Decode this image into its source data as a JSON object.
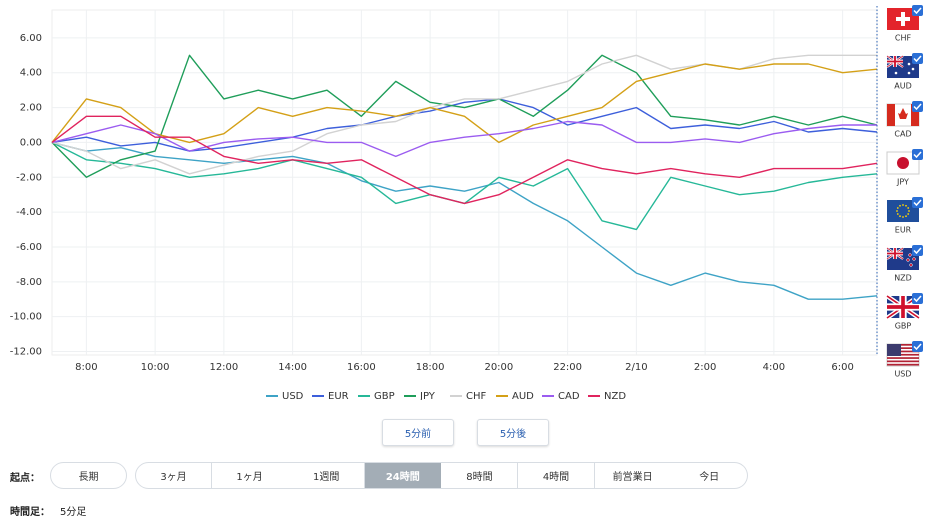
{
  "chart_data": {
    "type": "line",
    "x": [
      7,
      8,
      9,
      10,
      11,
      12,
      13,
      14,
      15,
      16,
      17,
      18,
      19,
      20,
      21,
      22,
      23,
      24,
      25,
      26,
      27,
      28,
      29,
      30,
      31
    ],
    "xlim": [
      7,
      31
    ],
    "xticks": [
      {
        "value": 8,
        "label": "8:00"
      },
      {
        "value": 10,
        "label": "10:00"
      },
      {
        "value": 12,
        "label": "12:00"
      },
      {
        "value": 14,
        "label": "14:00"
      },
      {
        "value": 16,
        "label": "16:00"
      },
      {
        "value": 18,
        "label": "18:00"
      },
      {
        "value": 20,
        "label": "20:00"
      },
      {
        "value": 22,
        "label": "22:00"
      },
      {
        "value": 24,
        "label": "2/10"
      },
      {
        "value": 26,
        "label": "2:00"
      },
      {
        "value": 28,
        "label": "4:00"
      },
      {
        "value": 30,
        "label": "6:00"
      }
    ],
    "ylim": [
      -12.2,
      7.6
    ],
    "yticks": [
      {
        "value": 6,
        "label": "6.00"
      },
      {
        "value": 4,
        "label": "4.00"
      },
      {
        "value": 2,
        "label": "2.00"
      },
      {
        "value": 0,
        "label": "0.00"
      },
      {
        "value": -2,
        "label": "-2.00"
      },
      {
        "value": -4,
        "label": "-4.00"
      },
      {
        "value": -6,
        "label": "-6.00"
      },
      {
        "value": -8,
        "label": "-8.00"
      },
      {
        "value": -10,
        "label": "-10.00"
      },
      {
        "value": -12,
        "label": "-12.00"
      }
    ],
    "grid": true,
    "series": [
      {
        "name": "USD",
        "color": "#3ea3c6",
        "values": [
          0,
          -0.5,
          -0.3,
          -0.8,
          -1,
          -1.2,
          -1,
          -0.8,
          -1.2,
          -2.2,
          -2.8,
          -2.5,
          -2.8,
          -2.3,
          -3.5,
          -4.5,
          -6,
          -7.5,
          -8.2,
          -7.5,
          -8,
          -8.2,
          -9,
          -9,
          -8.8
        ]
      },
      {
        "name": "EUR",
        "color": "#3d5fdb",
        "values": [
          0,
          0.3,
          -0.2,
          0,
          -0.5,
          -0.3,
          0,
          0.3,
          0.8,
          1,
          1.5,
          1.8,
          2.3,
          2.5,
          2,
          1,
          1.5,
          2,
          0.8,
          1,
          0.8,
          1.2,
          0.6,
          0.8,
          0.6
        ]
      },
      {
        "name": "GBP",
        "color": "#26b898",
        "values": [
          0,
          -1,
          -1.2,
          -1.5,
          -2,
          -1.8,
          -1.5,
          -1,
          -1.5,
          -2,
          -3.5,
          -3,
          -3.5,
          -2,
          -2.5,
          -1.5,
          -4.5,
          -5,
          -2,
          -2.5,
          -3,
          -2.8,
          -2.3,
          -2,
          -1.8
        ]
      },
      {
        "name": "JPY",
        "color": "#1f9e5a",
        "values": [
          0,
          -2,
          -1,
          -0.5,
          5,
          2.5,
          3,
          2.5,
          3,
          1.5,
          3.5,
          2.3,
          2,
          2.5,
          1.5,
          3,
          5,
          4,
          1.5,
          1.3,
          1,
          1.5,
          1,
          1.5,
          1
        ]
      },
      {
        "name": "CHF",
        "color": "#d2d2d2",
        "values": [
          0,
          -0.5,
          -1.5,
          -1,
          -1.8,
          -1.3,
          -0.8,
          -0.5,
          0.5,
          1,
          1.2,
          2,
          2.5,
          2.5,
          3,
          3.5,
          4.5,
          5,
          4.2,
          4.5,
          4.2,
          4.8,
          5,
          5,
          5
        ]
      },
      {
        "name": "AUD",
        "color": "#d4a017",
        "values": [
          0,
          2.5,
          2,
          0.5,
          0,
          0.5,
          2,
          1.5,
          2,
          1.8,
          1.5,
          2,
          1.5,
          0,
          1,
          1.5,
          2,
          3.5,
          4,
          4.5,
          4.2,
          4.5,
          4.5,
          4,
          4.2
        ]
      },
      {
        "name": "CAD",
        "color": "#9b5cf0",
        "values": [
          0,
          0.5,
          1,
          0.5,
          -0.5,
          0,
          0.2,
          0.3,
          0,
          0,
          -0.8,
          0,
          0.3,
          0.5,
          0.8,
          1.2,
          1,
          0,
          0,
          0.2,
          0,
          0.5,
          0.8,
          1,
          1
        ]
      },
      {
        "name": "NZD",
        "color": "#e0245e",
        "values": [
          0,
          1.5,
          1.5,
          0.3,
          0.3,
          -0.8,
          -1.2,
          -1,
          -1.2,
          -1,
          -2,
          -3,
          -3.5,
          -3,
          -2,
          -1,
          -1.5,
          -1.8,
          -1.5,
          -1.8,
          -2,
          -1.5,
          -1.5,
          -1.5,
          -1.2
        ]
      }
    ]
  },
  "sidebar": {
    "currencies": [
      "CHF",
      "AUD",
      "CAD",
      "JPY",
      "EUR",
      "NZD",
      "GBP",
      "USD"
    ]
  },
  "controls": {
    "step_buttons": [
      "5分前",
      "5分後"
    ],
    "start_label": "起点：",
    "start_long": "長期",
    "ranges": [
      "3ヶ月",
      "1ヶ月",
      "1週間",
      "24時間",
      "8時間",
      "4時間",
      "前営業日",
      "今日"
    ],
    "active_range": 3,
    "timeframe_label": "時間足：",
    "timeframe": "5分足"
  }
}
